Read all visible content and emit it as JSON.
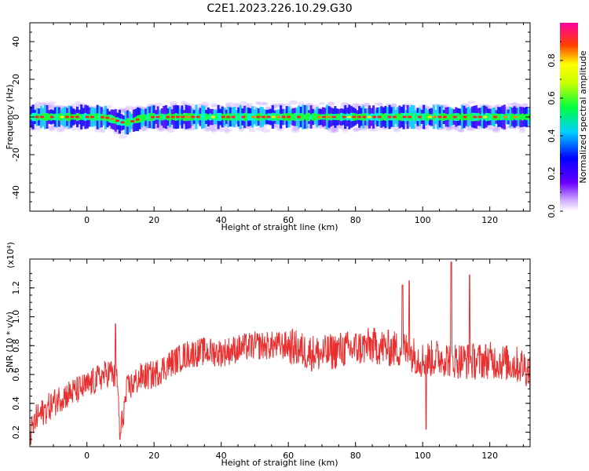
{
  "figure_title": "C2E1.2023.226.10.29.G30",
  "chart_data": [
    {
      "type": "heatmap",
      "title": "",
      "xlabel": "Height of straight line (km)",
      "ylabel": "Frequency (Hz)",
      "xlim": [
        -17,
        132
      ],
      "ylim": [
        -50,
        50
      ],
      "xticks": [
        "0",
        "20",
        "40",
        "60",
        "80",
        "100",
        "120"
      ],
      "yticks": [
        "40",
        "20",
        "0",
        "-20",
        "-40"
      ],
      "colorbar": {
        "label": "Normalized spectral amplitude",
        "range": [
          0,
          1
        ],
        "ticks": [
          "0.0",
          "0.2",
          "0.4",
          "0.6",
          "0.8"
        ],
        "colormap": "rainbow (violet-blue-cyan-green-yellow-red-magenta)"
      },
      "band": {
        "center_frequency_hz": 0,
        "core_halfwidth_hz": 2,
        "outer_halfwidth_hz": 6,
        "peak_amplitude": 0.9,
        "centre_dip": {
          "height_km": 11,
          "frequency_hz": -3
        }
      }
    },
    {
      "type": "line",
      "title": "",
      "xlabel": "Height of straight line (km)",
      "ylabel": "SNR (10 * v/v)",
      "y_multiplier": "(x10⁴)",
      "xlim": [
        -17,
        132
      ],
      "ylim": [
        0.1,
        1.4
      ],
      "xticks": [
        "0",
        "20",
        "40",
        "60",
        "80",
        "100",
        "120"
      ],
      "yticks": [
        "0.2",
        "0.4",
        "0.6",
        "0.8",
        "1.0",
        "1.2"
      ],
      "color": "#e83030",
      "series": [
        {
          "x": [
            -17,
            -15,
            -12,
            -8,
            -4,
            0,
            4,
            7,
            9,
            10,
            12,
            16,
            20,
            25,
            30,
            35,
            40,
            45,
            50,
            55,
            60,
            65,
            70,
            75,
            80,
            85,
            90,
            95,
            100,
            105,
            110,
            115,
            120,
            125,
            130,
            132
          ],
          "values": [
            0.18,
            0.3,
            0.36,
            0.44,
            0.48,
            0.52,
            0.58,
            0.62,
            0.55,
            0.2,
            0.5,
            0.58,
            0.6,
            0.68,
            0.74,
            0.76,
            0.75,
            0.78,
            0.8,
            0.8,
            0.8,
            0.76,
            0.74,
            0.77,
            0.78,
            0.8,
            0.78,
            0.77,
            0.7,
            0.72,
            0.7,
            0.69,
            0.7,
            0.68,
            0.66,
            0.62
          ]
        }
      ],
      "peaks": [
        {
          "x": 8.5,
          "y": 0.95
        },
        {
          "x": 9.8,
          "y": 0.15
        },
        {
          "x": 94,
          "y": 1.22
        },
        {
          "x": 96,
          "y": 1.25
        },
        {
          "x": 101,
          "y": 0.22
        },
        {
          "x": 108.5,
          "y": 1.38
        },
        {
          "x": 114,
          "y": 1.29
        }
      ]
    }
  ]
}
